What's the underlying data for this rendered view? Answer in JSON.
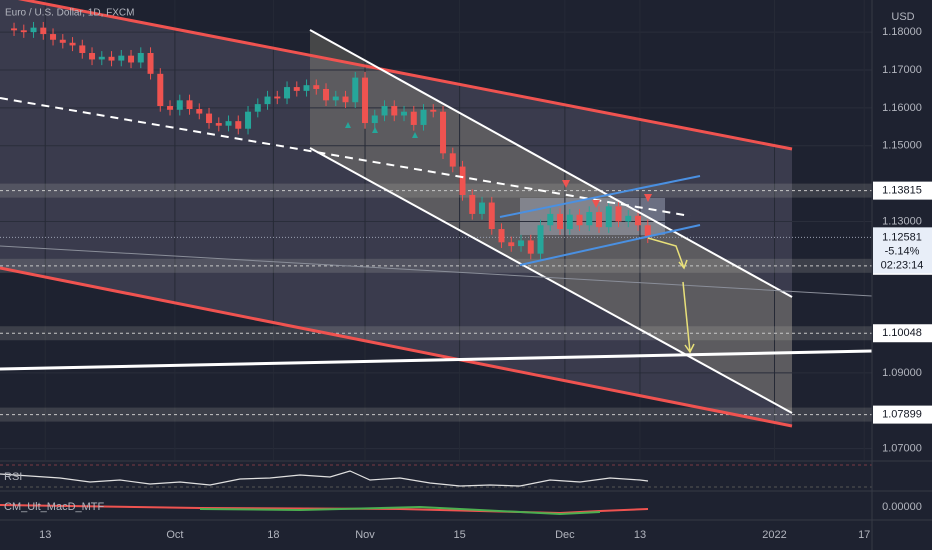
{
  "chart_data": {
    "type": "candlestick",
    "title": "Euro / U.S. Dollar, 1D, FXCM",
    "currency": "USD",
    "up_color": "#26a69a",
    "down_color": "#ef5350",
    "grid": true,
    "ylim": [
      1.067,
      1.1885
    ],
    "yticks": [
      {
        "value": 1.18,
        "label": "1.18000"
      },
      {
        "value": 1.17,
        "label": "1.17000"
      },
      {
        "value": 1.16,
        "label": "1.16000"
      },
      {
        "value": 1.15,
        "label": "1.15000"
      },
      {
        "value": 1.13,
        "label": "1.13000"
      },
      {
        "value": 1.09,
        "label": "1.09000"
      },
      {
        "value": 1.07,
        "label": "1.07000"
      }
    ],
    "xlim": [
      -1.44,
      88
    ],
    "xticks": [
      {
        "value": 3.2,
        "label": "13"
      },
      {
        "value": 16.5,
        "label": "Oct"
      },
      {
        "value": 26.6,
        "label": "18"
      },
      {
        "value": 36,
        "label": "Nov"
      },
      {
        "value": 45.7,
        "label": "15"
      },
      {
        "value": 56.5,
        "label": "Dec"
      },
      {
        "value": 64.2,
        "label": "13"
      },
      {
        "value": 78,
        "label": "2022"
      },
      {
        "value": 87.2,
        "label": "17"
      }
    ],
    "open": [
      1.181,
      1.1805,
      1.18,
      1.1812,
      1.1795,
      1.178,
      1.1772,
      1.1765,
      1.1745,
      1.1728,
      1.1735,
      1.1725,
      1.1738,
      1.172,
      1.1745,
      1.169,
      1.1605,
      1.1595,
      1.162,
      1.1597,
      1.1585,
      1.156,
      1.1553,
      1.1565,
      1.1545,
      1.159,
      1.161,
      1.163,
      1.1625,
      1.1655,
      1.1645,
      1.166,
      1.165,
      1.162,
      1.163,
      1.1615,
      1.168,
      1.156,
      1.158,
      1.1605,
      1.158,
      1.159,
      1.1555,
      1.1595,
      1.159,
      1.148,
      1.1445,
      1.137,
      1.132,
      1.135,
      1.128,
      1.1245,
      1.1235,
      1.125,
      1.1215,
      1.129,
      1.132,
      1.128,
      1.1318,
      1.129,
      1.1325,
      1.1285,
      1.134,
      1.13,
      1.1315,
      1.129
    ],
    "high": [
      1.1825,
      1.182,
      1.1827,
      1.1827,
      1.181,
      1.1795,
      1.1787,
      1.178,
      1.176,
      1.175,
      1.175,
      1.1753,
      1.1753,
      1.176,
      1.176,
      1.1705,
      1.162,
      1.1635,
      1.1635,
      1.1612,
      1.16,
      1.1575,
      1.158,
      1.158,
      1.1605,
      1.1625,
      1.1645,
      1.1645,
      1.167,
      1.167,
      1.1675,
      1.1675,
      1.1665,
      1.1645,
      1.1645,
      1.1695,
      1.1695,
      1.1595,
      1.162,
      1.162,
      1.1605,
      1.1605,
      1.161,
      1.161,
      1.1605,
      1.1495,
      1.146,
      1.1385,
      1.1365,
      1.1365,
      1.1295,
      1.126,
      1.1265,
      1.1265,
      1.1305,
      1.1335,
      1.1335,
      1.1333,
      1.1333,
      1.134,
      1.134,
      1.1355,
      1.1355,
      1.133,
      1.133,
      1.1305
    ],
    "low": [
      1.179,
      1.1785,
      1.1785,
      1.178,
      1.1765,
      1.1757,
      1.175,
      1.173,
      1.1713,
      1.1713,
      1.171,
      1.171,
      1.1705,
      1.1705,
      1.1675,
      1.159,
      1.158,
      1.158,
      1.1582,
      1.157,
      1.1545,
      1.1538,
      1.1538,
      1.153,
      1.153,
      1.1575,
      1.1595,
      1.161,
      1.161,
      1.163,
      1.163,
      1.1635,
      1.1605,
      1.1605,
      1.16,
      1.16,
      1.1545,
      1.1545,
      1.1565,
      1.1565,
      1.1565,
      1.154,
      1.154,
      1.1575,
      1.1465,
      1.143,
      1.1355,
      1.1305,
      1.1305,
      1.1265,
      1.123,
      1.122,
      1.122,
      1.12,
      1.12,
      1.1275,
      1.1265,
      1.1265,
      1.1275,
      1.1275,
      1.127,
      1.127,
      1.1285,
      1.1285,
      1.1275,
      1.1243
    ],
    "close": [
      1.1805,
      1.18,
      1.1812,
      1.1795,
      1.178,
      1.1772,
      1.1765,
      1.1745,
      1.1728,
      1.1735,
      1.1725,
      1.1738,
      1.172,
      1.1745,
      1.169,
      1.1605,
      1.1595,
      1.162,
      1.1597,
      1.1585,
      1.156,
      1.1553,
      1.1565,
      1.1545,
      1.159,
      1.161,
      1.163,
      1.1625,
      1.1655,
      1.1645,
      1.166,
      1.165,
      1.162,
      1.163,
      1.1615,
      1.168,
      1.156,
      1.158,
      1.1605,
      1.158,
      1.159,
      1.1555,
      1.1595,
      1.159,
      1.148,
      1.1445,
      1.137,
      1.132,
      1.135,
      1.128,
      1.1245,
      1.1235,
      1.125,
      1.1215,
      1.129,
      1.132,
      1.128,
      1.1318,
      1.129,
      1.1325,
      1.1285,
      1.134,
      1.13,
      1.1315,
      1.129,
      1.12581
    ],
    "levels": [
      1.13815,
      1.11829,
      1.10048,
      1.07899
    ],
    "last_price": 1.12581,
    "last_change": {
      "value": -5.14,
      "label": "-5.14%"
    },
    "countdown": "02:23:14",
    "indicators": [
      {
        "name": "RSI"
      },
      {
        "name": "CM_Ult_MacD_MTF",
        "zero": {
          "value": 0,
          "label": "0.00000"
        }
      }
    ]
  }
}
